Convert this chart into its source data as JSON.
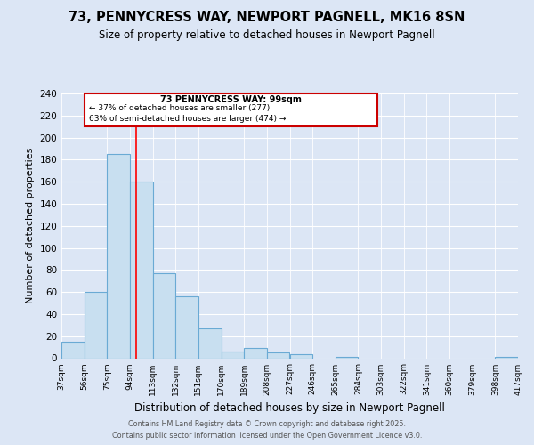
{
  "title_line1": "73, PENNYCRESS WAY, NEWPORT PAGNELL, MK16 8SN",
  "title_line2": "Size of property relative to detached houses in Newport Pagnell",
  "xlabel": "Distribution of detached houses by size in Newport Pagnell",
  "ylabel": "Number of detached properties",
  "bin_edges": [
    37,
    56,
    75,
    94,
    113,
    132,
    151,
    170,
    189,
    208,
    227,
    246,
    265,
    284,
    303,
    322,
    341,
    360,
    379,
    398,
    417
  ],
  "bar_heights": [
    15,
    60,
    185,
    160,
    77,
    56,
    27,
    6,
    9,
    5,
    4,
    0,
    1,
    0,
    0,
    0,
    0,
    0,
    0,
    1
  ],
  "bar_color": "#c8dff0",
  "bar_edge_color": "#6aaad4",
  "red_line_x": 99,
  "ylim": [
    0,
    240
  ],
  "yticks": [
    0,
    20,
    40,
    60,
    80,
    100,
    120,
    140,
    160,
    180,
    200,
    220,
    240
  ],
  "annotation_title": "73 PENNYCRESS WAY: 99sqm",
  "annotation_line1": "← 37% of detached houses are smaller (277)",
  "annotation_line2": "63% of semi-detached houses are larger (474) →",
  "annotation_box_color": "#ffffff",
  "annotation_box_edge": "#cc0000",
  "footer_line1": "Contains HM Land Registry data © Crown copyright and database right 2025.",
  "footer_line2": "Contains public sector information licensed under the Open Government Licence v3.0.",
  "background_color": "#dce6f5",
  "plot_bg_color": "#dce6f5"
}
